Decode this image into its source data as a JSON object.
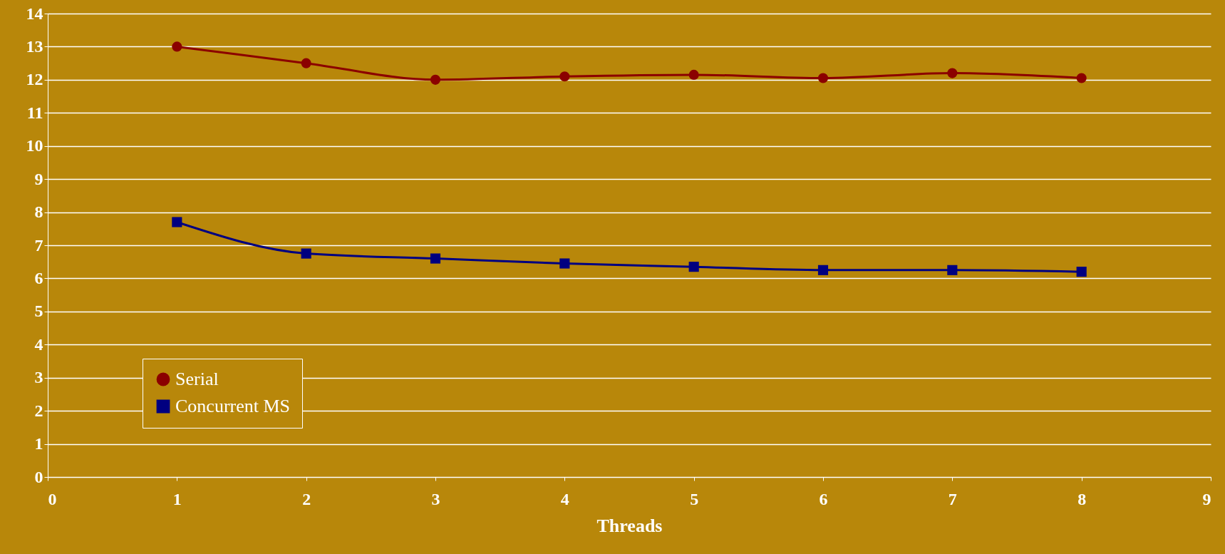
{
  "chart_data": {
    "type": "line",
    "xlabel": "Threads",
    "x": [
      1,
      2,
      3,
      4,
      5,
      6,
      7,
      8
    ],
    "series": [
      {
        "name": "Serial",
        "color": "#8b0000",
        "marker": "circle",
        "values": [
          13.0,
          12.5,
          12.0,
          12.1,
          12.15,
          12.05,
          12.2,
          12.05
        ]
      },
      {
        "name": "Concurrent MS",
        "color": "#000080",
        "marker": "square",
        "values": [
          7.7,
          6.75,
          6.6,
          6.45,
          6.35,
          6.25,
          6.25,
          6.2
        ]
      }
    ],
    "xlim": [
      0,
      9
    ],
    "xticks": [
      0,
      1,
      2,
      3,
      4,
      5,
      6,
      7,
      8,
      9
    ],
    "ylim": [
      0,
      14
    ],
    "yticks": [
      0,
      1,
      2,
      3,
      4,
      5,
      6,
      7,
      8,
      9,
      10,
      11,
      12,
      13,
      14
    ],
    "grid": "y",
    "legend": "bottom left"
  }
}
